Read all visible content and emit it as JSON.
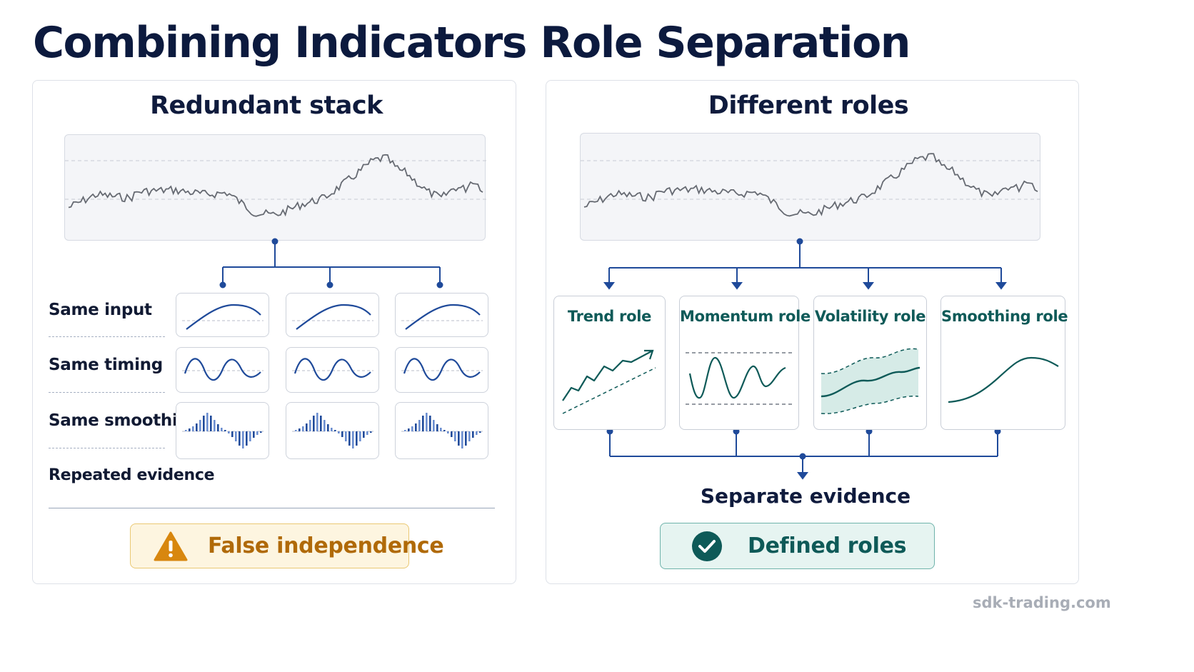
{
  "title": "Combining Indicators Role Separation",
  "left": {
    "heading": "Redundant stack",
    "rows": [
      "Same input",
      "Same timing",
      "Same smoothing"
    ],
    "footer_label": "Repeated evidence",
    "badge": {
      "text": "False independence",
      "icon": "warning-icon"
    }
  },
  "right": {
    "heading": "Different roles",
    "roles": [
      "Trend role",
      "Momentum role",
      "Volatility role",
      "Smoothing role"
    ],
    "merge_label": "Separate evidence",
    "badge": {
      "text": "Defined roles",
      "icon": "check-icon"
    }
  },
  "watermark": "sdk-trading.com",
  "colors": {
    "navy": "#1f4a9a",
    "teal": "#0e5a58",
    "warning_bg": "#fdf5e0",
    "warning_border": "#eac873",
    "warning_text": "#b06a08",
    "success_bg": "#e6f4f1",
    "success_border": "#6fb3ab"
  }
}
